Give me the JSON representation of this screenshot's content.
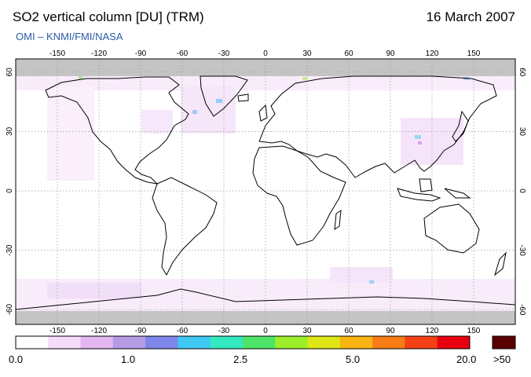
{
  "header": {
    "title": "SO2 vertical column [DU] (TRM)",
    "date": "16 March 2007",
    "credit": "OMI  –  KNMI/FMI/NASA"
  },
  "map": {
    "lon_ticks": [
      "-150",
      "-120",
      "-90",
      "-60",
      "-30",
      "0",
      "30",
      "60",
      "90",
      "120",
      "150"
    ],
    "lat_ticks": [
      "60",
      "30",
      "0",
      "-30",
      "-60"
    ],
    "ocean_color": "#ffffff",
    "polar_color": "#c4c4c4",
    "coastline_color": "#000000",
    "grid_color": "#9a9a9a"
  },
  "colorbar": {
    "labels": [
      "0.0",
      "1.0",
      "2.5",
      "5.0",
      "20.0"
    ],
    "overflow_label": ">50",
    "colors": [
      "#ffffff",
      "#f6dcf8",
      "#e3b6f0",
      "#b59ae6",
      "#7f86ea",
      "#40c8f4",
      "#34e8c0",
      "#4ee46a",
      "#9cee2a",
      "#dfe616",
      "#f8b410",
      "#f87c16",
      "#f44014",
      "#e80010"
    ],
    "overflow_color": "#5a0000"
  }
}
